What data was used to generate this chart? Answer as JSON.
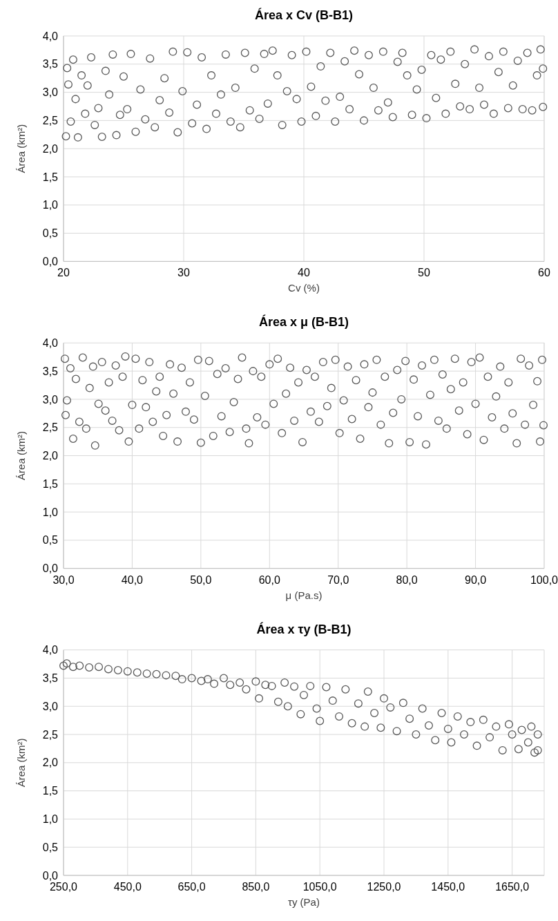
{
  "chart_data": [
    {
      "type": "scatter",
      "title": "Área x Cv (B-B1)",
      "xlabel": "Cv (%)",
      "ylabel": "Área (km²)",
      "marker": "circle",
      "grid": true,
      "xlim": [
        20,
        60
      ],
      "xticks": [
        20,
        30,
        40,
        50,
        60
      ],
      "ylim": [
        0,
        4
      ],
      "yticks": [
        {
          "value": 0,
          "label": "0,0"
        },
        {
          "value": 0.5,
          "label": "0,5"
        },
        {
          "value": 1,
          "label": "1,0"
        },
        {
          "value": 1.5,
          "label": "1,5"
        },
        {
          "value": 2,
          "label": "2,0"
        },
        {
          "value": 2.5,
          "label": "2,5"
        },
        {
          "value": 3,
          "label": "3,0"
        },
        {
          "value": 3.5,
          "label": "3,5"
        },
        {
          "value": 4,
          "label": "4,0"
        }
      ],
      "series": [
        {
          "color": "#595959",
          "x": [
            20.2,
            20.3,
            20.4,
            20.6,
            20.8,
            21.0,
            21.2,
            21.5,
            21.8,
            22.0,
            22.3,
            22.6,
            22.9,
            23.2,
            23.5,
            23.8,
            24.1,
            24.4,
            24.7,
            25.0,
            25.3,
            25.6,
            26.0,
            26.4,
            26.8,
            27.2,
            27.6,
            28.0,
            28.4,
            28.8,
            29.1,
            29.5,
            29.9,
            30.3,
            30.7,
            31.1,
            31.5,
            31.9,
            32.3,
            32.7,
            33.1,
            33.5,
            33.9,
            34.3,
            34.7,
            35.1,
            35.5,
            35.9,
            36.3,
            36.7,
            37.0,
            37.4,
            37.8,
            38.2,
            38.6,
            39.0,
            39.4,
            39.8,
            40.2,
            40.6,
            41.0,
            41.4,
            41.8,
            42.2,
            42.6,
            43.0,
            43.4,
            43.8,
            44.2,
            44.6,
            45.0,
            45.4,
            45.8,
            46.2,
            46.6,
            47.0,
            47.4,
            47.8,
            48.2,
            48.6,
            49.0,
            49.4,
            49.8,
            50.2,
            50.6,
            51.0,
            51.4,
            51.8,
            52.2,
            52.6,
            53.0,
            53.4,
            53.8,
            54.2,
            54.6,
            55.0,
            55.4,
            55.8,
            56.2,
            56.6,
            57.0,
            57.4,
            57.8,
            58.2,
            58.6,
            59.0,
            59.4,
            59.7,
            59.9,
            59.9
          ],
          "values": [
            2.22,
            3.43,
            3.14,
            2.48,
            3.58,
            2.88,
            2.2,
            3.3,
            2.62,
            3.12,
            3.62,
            2.42,
            2.72,
            2.21,
            3.38,
            2.96,
            3.67,
            2.24,
            2.6,
            3.28,
            2.7,
            3.68,
            2.3,
            3.05,
            2.52,
            3.6,
            2.38,
            2.86,
            3.25,
            2.64,
            3.72,
            2.29,
            3.02,
            3.71,
            2.45,
            2.78,
            3.62,
            2.35,
            3.3,
            2.62,
            2.96,
            3.67,
            2.48,
            3.08,
            2.38,
            3.7,
            2.68,
            3.42,
            2.53,
            3.68,
            2.8,
            3.74,
            3.3,
            2.42,
            3.02,
            3.66,
            2.88,
            2.48,
            3.72,
            3.1,
            2.58,
            3.46,
            2.85,
            3.7,
            2.48,
            2.92,
            3.55,
            2.7,
            3.74,
            3.32,
            2.5,
            3.66,
            3.08,
            2.68,
            3.72,
            2.82,
            2.56,
            3.54,
            3.7,
            3.3,
            2.6,
            3.05,
            3.4,
            2.54,
            3.66,
            2.9,
            3.58,
            2.62,
            3.72,
            3.15,
            2.75,
            3.5,
            2.7,
            3.76,
            3.08,
            2.78,
            3.64,
            2.62,
            3.36,
            3.72,
            2.72,
            3.12,
            3.56,
            2.7,
            3.7,
            2.68,
            3.3,
            3.76,
            2.74,
            3.42
          ]
        }
      ]
    },
    {
      "type": "scatter",
      "title": "Área x μ (B-B1)",
      "xlabel": "μ (Pa.s)",
      "ylabel": "Área (km²)",
      "marker": "circle",
      "grid": true,
      "xlim": [
        30,
        100
      ],
      "xticks": [
        {
          "value": 30,
          "label": "30,0"
        },
        {
          "value": 40,
          "label": "40,0"
        },
        {
          "value": 50,
          "label": "50,0"
        },
        {
          "value": 60,
          "label": "60,0"
        },
        {
          "value": 70,
          "label": "70,0"
        },
        {
          "value": 80,
          "label": "80,0"
        },
        {
          "value": 90,
          "label": "90,0"
        },
        {
          "value": 100,
          "label": "100,0"
        }
      ],
      "ylim": [
        0,
        4
      ],
      "yticks": [
        {
          "value": 0,
          "label": "0,0"
        },
        {
          "value": 0.5,
          "label": "0,5"
        },
        {
          "value": 1,
          "label": "1,0"
        },
        {
          "value": 1.5,
          "label": "1,5"
        },
        {
          "value": 2,
          "label": "2,0"
        },
        {
          "value": 2.5,
          "label": "2,5"
        },
        {
          "value": 3,
          "label": "3,0"
        },
        {
          "value": 3.5,
          "label": "3,5"
        },
        {
          "value": 4,
          "label": "4,0"
        }
      ],
      "series": [
        {
          "color": "#595959",
          "x": [
            30.2,
            30.3,
            30.5,
            31.0,
            31.4,
            31.8,
            32.3,
            32.8,
            33.3,
            33.8,
            34.3,
            34.6,
            35.1,
            35.6,
            36.1,
            36.6,
            37.1,
            37.6,
            38.1,
            38.6,
            39.0,
            39.5,
            40.0,
            40.5,
            41.0,
            41.5,
            42.0,
            42.5,
            43.0,
            43.5,
            44.0,
            44.5,
            45.0,
            45.5,
            46.0,
            46.6,
            47.2,
            47.8,
            48.4,
            49.0,
            49.6,
            50.0,
            50.6,
            51.2,
            51.8,
            52.4,
            53.0,
            53.6,
            54.2,
            54.8,
            55.4,
            56.0,
            56.6,
            57.0,
            57.6,
            58.2,
            58.8,
            59.4,
            60.0,
            60.6,
            61.2,
            61.8,
            62.4,
            63.0,
            63.6,
            64.2,
            64.8,
            65.4,
            66.0,
            66.6,
            67.2,
            67.8,
            68.4,
            69.0,
            69.6,
            70.2,
            70.8,
            71.4,
            72.0,
            72.6,
            73.2,
            73.8,
            74.4,
            75.0,
            75.6,
            76.2,
            76.8,
            77.4,
            78.0,
            78.6,
            79.2,
            79.8,
            80.4,
            81.0,
            81.6,
            82.2,
            82.8,
            83.4,
            84.0,
            84.6,
            85.2,
            85.8,
            86.4,
            87.0,
            87.6,
            88.2,
            88.8,
            89.4,
            90.0,
            90.6,
            91.2,
            91.8,
            92.4,
            93.0,
            93.6,
            94.2,
            94.8,
            95.4,
            96.0,
            96.6,
            97.2,
            97.8,
            98.4,
            99.0,
            99.4,
            99.7,
            99.9
          ],
          "values": [
            3.72,
            2.72,
            2.98,
            3.55,
            2.3,
            3.36,
            2.6,
            3.74,
            2.48,
            3.2,
            3.58,
            2.18,
            2.92,
            3.66,
            2.8,
            3.3,
            2.62,
            3.6,
            2.45,
            3.4,
            3.76,
            2.25,
            2.9,
            3.72,
            2.48,
            3.34,
            2.86,
            3.66,
            2.6,
            3.14,
            3.4,
            2.35,
            2.72,
            3.62,
            3.1,
            2.25,
            3.56,
            2.78,
            3.3,
            2.64,
            3.7,
            2.23,
            3.06,
            3.68,
            2.35,
            3.45,
            2.7,
            3.55,
            2.42,
            2.95,
            3.36,
            3.74,
            2.48,
            2.22,
            3.5,
            2.68,
            3.4,
            2.55,
            3.62,
            2.92,
            3.72,
            2.4,
            3.1,
            3.56,
            2.62,
            3.3,
            2.24,
            3.52,
            2.78,
            3.4,
            2.6,
            3.66,
            2.88,
            3.2,
            3.7,
            2.4,
            2.98,
            3.58,
            2.65,
            3.34,
            2.3,
            3.62,
            2.86,
            3.12,
            3.7,
            2.55,
            3.4,
            2.22,
            2.76,
            3.52,
            3.0,
            3.68,
            2.24,
            3.35,
            2.7,
            3.6,
            2.2,
            3.08,
            3.7,
            2.62,
            3.44,
            2.48,
            3.18,
            3.72,
            2.8,
            3.3,
            2.38,
            3.66,
            2.92,
            3.74,
            2.28,
            3.4,
            2.68,
            3.05,
            3.58,
            2.48,
            3.3,
            2.75,
            2.22,
            3.72,
            2.55,
            3.6,
            2.9,
            3.32,
            2.25,
            3.7,
            2.54
          ]
        }
      ]
    },
    {
      "type": "scatter",
      "title": "Área x τy (B-B1)",
      "xlabel": "τy (Pa)",
      "ylabel": "Área (km²)",
      "marker": "circle",
      "grid": true,
      "xlim": [
        250,
        1750
      ],
      "xticks": [
        {
          "value": 250,
          "label": "250,0"
        },
        {
          "value": 450,
          "label": "450,0"
        },
        {
          "value": 650,
          "label": "650,0"
        },
        {
          "value": 850,
          "label": "850,0"
        },
        {
          "value": 1050,
          "label": "1050,0"
        },
        {
          "value": 1250,
          "label": "1250,0"
        },
        {
          "value": 1450,
          "label": "1450,0"
        },
        {
          "value": 1650,
          "label": "1650,0"
        }
      ],
      "ylim": [
        0,
        4
      ],
      "yticks": [
        {
          "value": 0,
          "label": "0,0"
        },
        {
          "value": 0.5,
          "label": "0,5"
        },
        {
          "value": 1,
          "label": "1,0"
        },
        {
          "value": 1.5,
          "label": "1,5"
        },
        {
          "value": 2,
          "label": "2,0"
        },
        {
          "value": 2.5,
          "label": "2,5"
        },
        {
          "value": 3,
          "label": "3,0"
        },
        {
          "value": 3.5,
          "label": "3,5"
        },
        {
          "value": 4,
          "label": "4,0"
        }
      ],
      "series": [
        {
          "color": "#595959",
          "x": [
            250,
            260,
            280,
            300,
            330,
            360,
            390,
            420,
            450,
            480,
            510,
            540,
            570,
            600,
            620,
            650,
            680,
            700,
            720,
            750,
            770,
            800,
            820,
            850,
            860,
            880,
            900,
            920,
            940,
            950,
            970,
            990,
            1000,
            1020,
            1040,
            1050,
            1070,
            1090,
            1110,
            1130,
            1150,
            1170,
            1190,
            1200,
            1220,
            1240,
            1250,
            1270,
            1290,
            1310,
            1330,
            1350,
            1370,
            1390,
            1410,
            1430,
            1450,
            1460,
            1480,
            1500,
            1520,
            1540,
            1560,
            1580,
            1600,
            1620,
            1640,
            1650,
            1670,
            1680,
            1700,
            1710,
            1720,
            1730,
            1730
          ],
          "values": [
            3.72,
            3.76,
            3.7,
            3.72,
            3.69,
            3.7,
            3.66,
            3.64,
            3.62,
            3.6,
            3.58,
            3.57,
            3.55,
            3.54,
            3.48,
            3.5,
            3.45,
            3.48,
            3.4,
            3.5,
            3.38,
            3.42,
            3.3,
            3.44,
            3.14,
            3.38,
            3.36,
            3.08,
            3.42,
            3.0,
            3.35,
            2.86,
            3.2,
            3.36,
            2.96,
            2.74,
            3.34,
            3.1,
            2.82,
            3.3,
            2.7,
            3.05,
            2.64,
            3.26,
            2.88,
            2.62,
            3.14,
            2.98,
            2.56,
            3.06,
            2.78,
            2.5,
            2.96,
            2.66,
            2.4,
            2.88,
            2.6,
            2.36,
            2.82,
            2.5,
            2.72,
            2.3,
            2.76,
            2.45,
            2.64,
            2.22,
            2.68,
            2.5,
            2.24,
            2.58,
            2.36,
            2.64,
            2.18,
            2.5,
            2.22
          ]
        }
      ]
    }
  ]
}
